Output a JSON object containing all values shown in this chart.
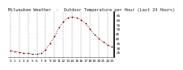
{
  "title": "Milwaukee Weather  -  Outdoor Temperature per Hour (Last 24 Hours)",
  "hours": [
    0,
    1,
    2,
    3,
    4,
    5,
    6,
    7,
    8,
    9,
    10,
    11,
    12,
    13,
    14,
    15,
    16,
    17,
    18,
    19,
    20,
    21,
    22,
    23
  ],
  "temps": [
    27,
    26,
    25,
    24,
    24,
    23,
    23,
    24,
    28,
    35,
    42,
    52,
    58,
    62,
    63,
    62,
    60,
    56,
    50,
    44,
    40,
    36,
    33,
    31
  ],
  "line_color": "#dd0000",
  "marker_color": "#000000",
  "bg_color": "#ffffff",
  "grid_color": "#999999",
  "title_fontsize": 3.8,
  "tick_fontsize": 3.0,
  "ylim": [
    20,
    68
  ],
  "yticks": [
    25,
    30,
    35,
    40,
    45,
    50,
    55,
    60,
    65
  ],
  "right_axis_color": "#000000"
}
